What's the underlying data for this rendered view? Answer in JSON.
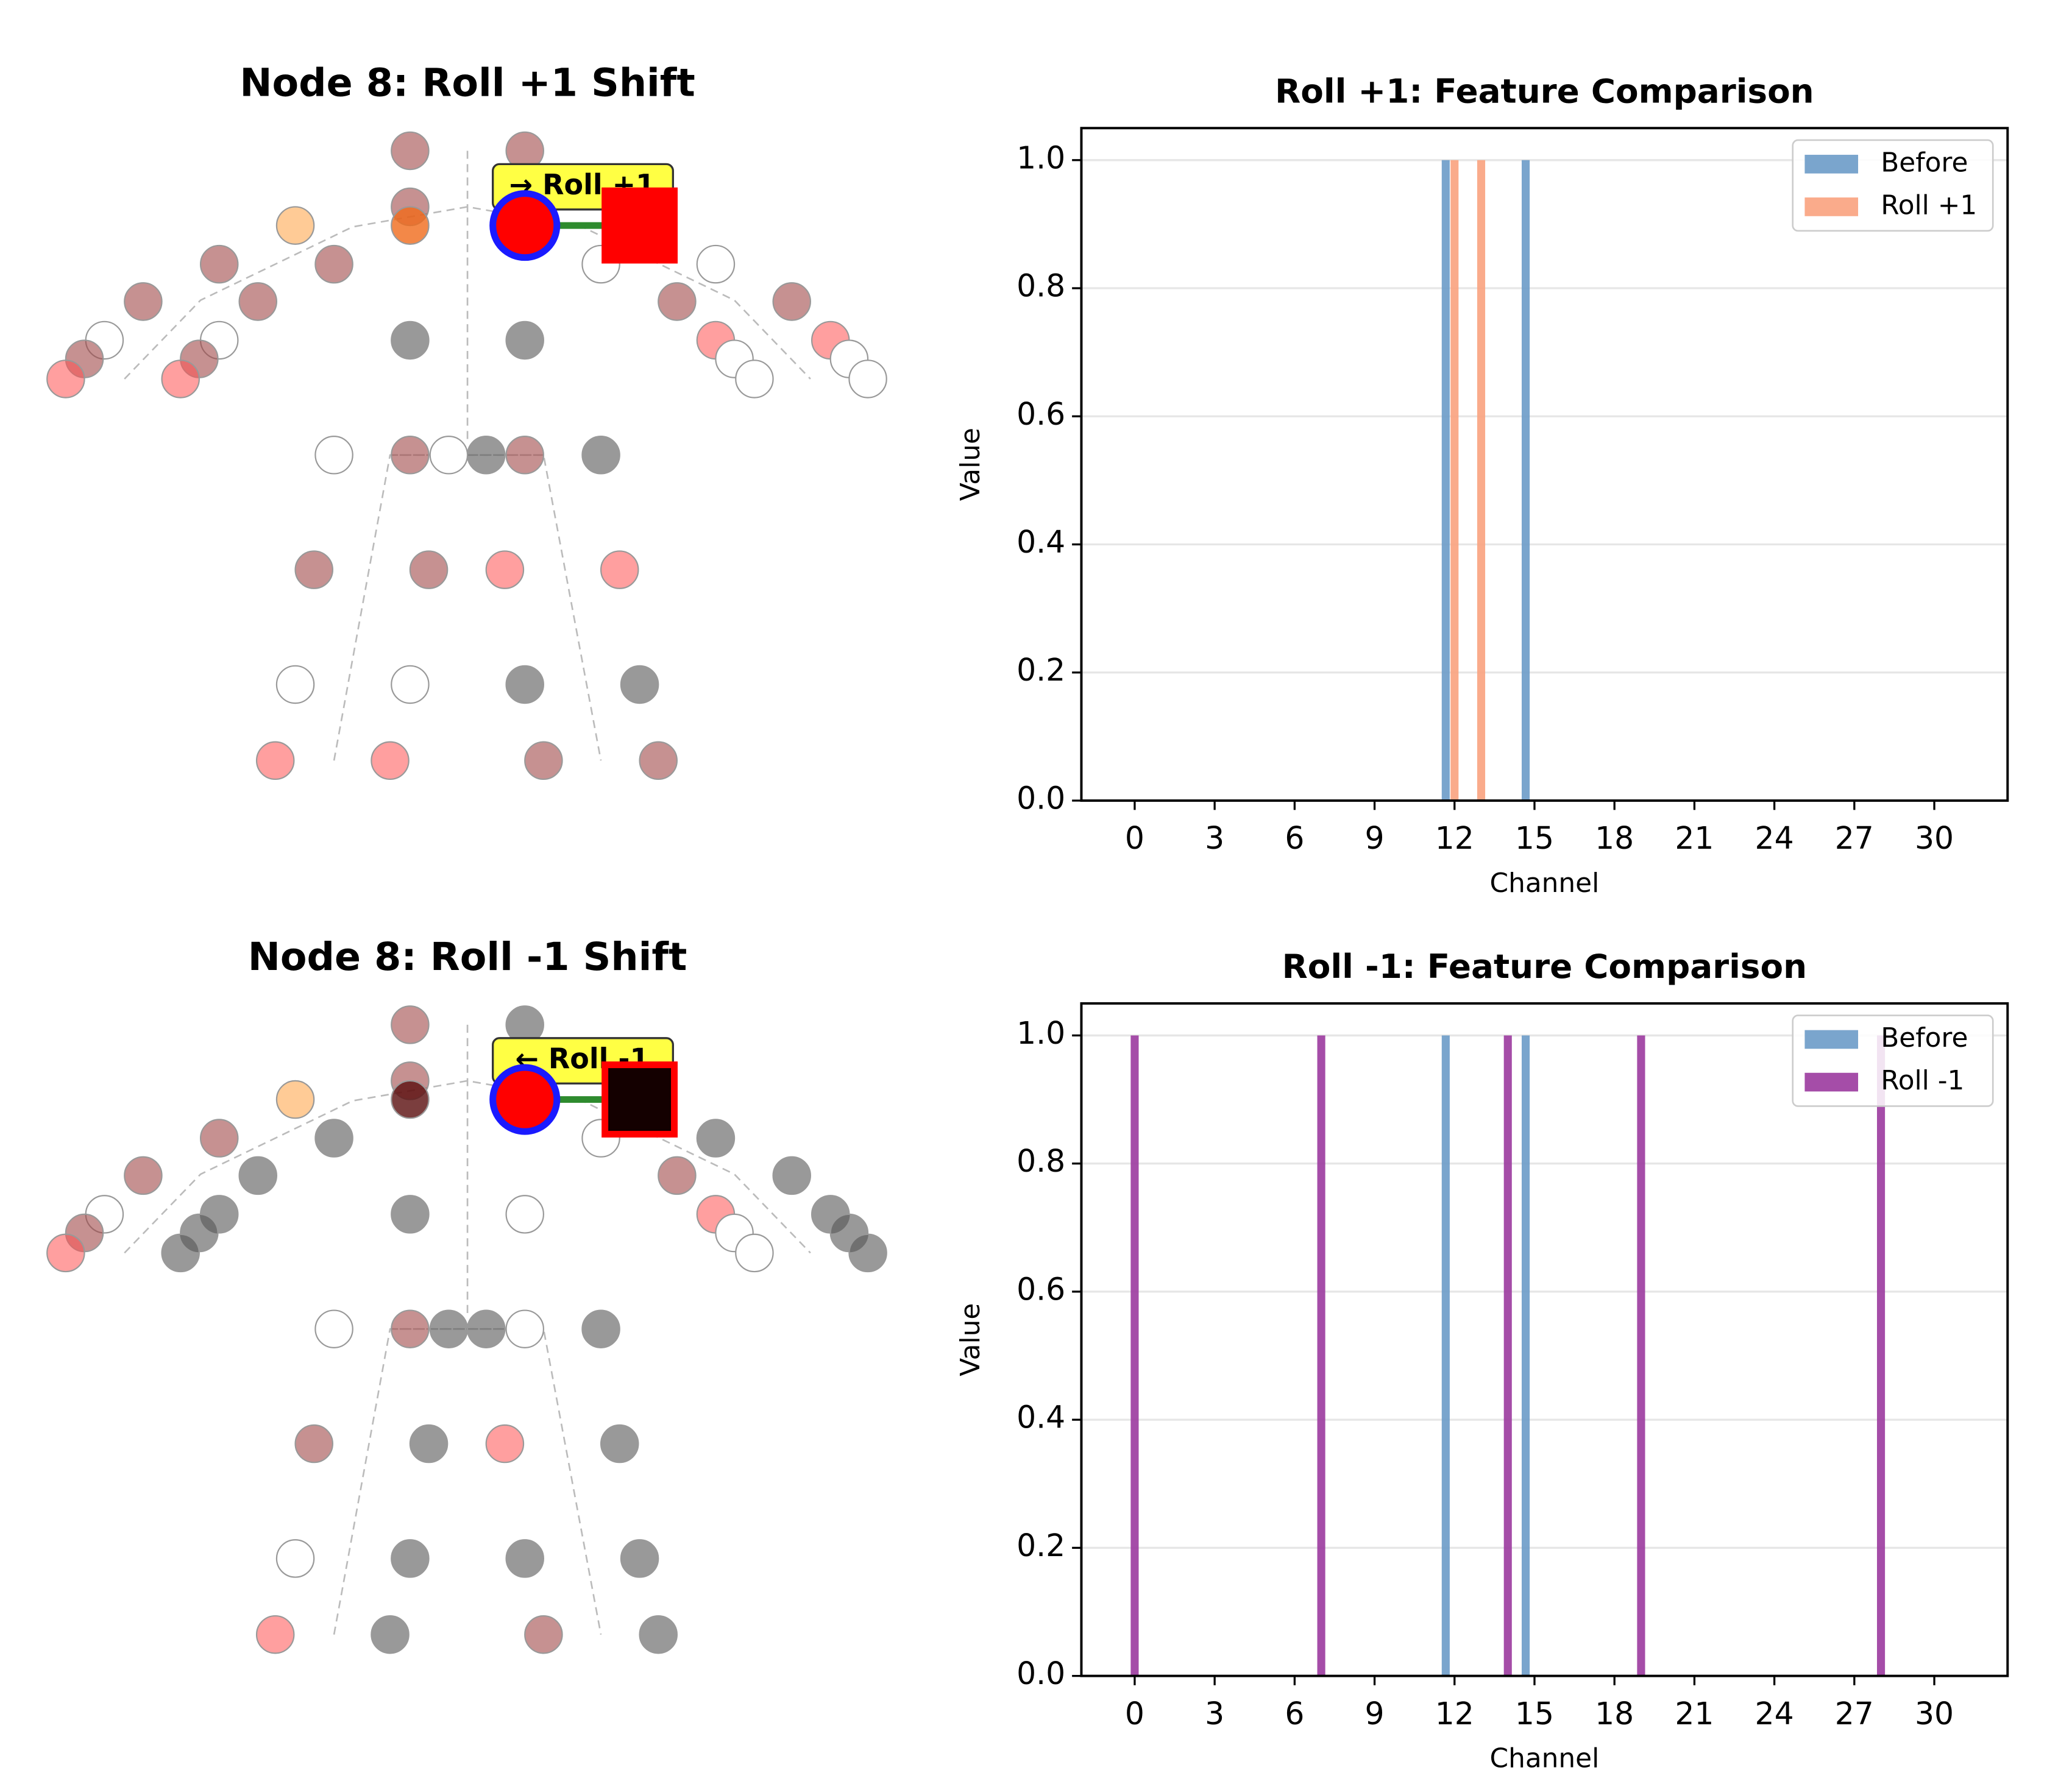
{
  "chart_data": [
    {
      "type": "skeleton",
      "title": "Node 8: Roll +1 Shift",
      "annotation": "→ Roll +1"
    },
    {
      "type": "bar",
      "title": "Roll +1: Feature Comparison",
      "xlabel": "Channel",
      "ylabel": "Value",
      "x": [
        0,
        1,
        2,
        3,
        4,
        5,
        6,
        7,
        8,
        9,
        10,
        11,
        12,
        13,
        14,
        15,
        16,
        17,
        18,
        19,
        20,
        21,
        22,
        23,
        24,
        25,
        26,
        27,
        28,
        29,
        30,
        31
      ],
      "series": [
        {
          "name": "Before",
          "color": "#6b9bc8",
          "values": [
            0,
            0,
            0,
            0,
            0,
            0,
            0,
            0,
            0,
            0,
            0,
            0,
            1,
            0,
            0,
            1,
            0,
            0,
            0,
            0,
            0,
            0,
            0,
            0,
            0,
            0,
            0,
            0,
            0,
            0,
            0,
            0
          ]
        },
        {
          "name": "Roll +1",
          "color": "#f9a27e",
          "values": [
            0,
            0,
            0,
            0,
            0,
            0,
            0,
            0,
            0,
            0,
            0,
            0,
            1,
            1,
            0,
            0,
            0,
            0,
            0,
            0,
            0,
            0,
            0,
            0,
            0,
            0,
            0,
            0,
            0,
            0,
            0,
            0
          ]
        }
      ],
      "xlim": [
        -2,
        32.75
      ],
      "xticks": [
        0,
        3,
        6,
        9,
        12,
        15,
        18,
        21,
        24,
        27,
        30
      ],
      "ylim": [
        0,
        1.05
      ],
      "yticks": [
        {
          "value": 0,
          "label": "0.0"
        },
        0.2,
        0.4,
        0.6,
        0.8,
        {
          "value": 1,
          "label": "1.0"
        }
      ],
      "grid": true,
      "legend": "upper right"
    },
    {
      "type": "skeleton",
      "title": "Node 8: Roll -1 Shift",
      "annotation": "← Roll -1"
    },
    {
      "type": "bar",
      "title": "Roll -1: Feature Comparison",
      "xlabel": "Channel",
      "ylabel": "Value",
      "x": [
        0,
        1,
        2,
        3,
        4,
        5,
        6,
        7,
        8,
        9,
        10,
        11,
        12,
        13,
        14,
        15,
        16,
        17,
        18,
        19,
        20,
        21,
        22,
        23,
        24,
        25,
        26,
        27,
        28,
        29,
        30,
        31
      ],
      "series": [
        {
          "name": "Before",
          "color": "#6b9bc8",
          "values": [
            0,
            0,
            0,
            0,
            0,
            0,
            0,
            0,
            0,
            0,
            0,
            0,
            1,
            0,
            0,
            1,
            0,
            0,
            0,
            0,
            0,
            0,
            0,
            0,
            0,
            0,
            0,
            0,
            0,
            0,
            0,
            0
          ]
        },
        {
          "name": "Roll -1",
          "color": "#9b3a9e",
          "values": [
            1,
            0,
            0,
            0,
            0,
            0,
            0,
            1,
            0,
            0,
            0,
            0,
            0,
            0,
            1,
            0,
            0,
            0,
            0,
            1,
            0,
            0,
            0,
            0,
            0,
            0,
            0,
            0,
            1,
            0,
            0,
            0
          ]
        }
      ],
      "xlim": [
        -2,
        32.75
      ],
      "xticks": [
        0,
        3,
        6,
        9,
        12,
        15,
        18,
        21,
        24,
        27,
        30
      ],
      "ylim": [
        0,
        1.05
      ],
      "yticks": [
        {
          "value": 0,
          "label": "0.0"
        },
        0.2,
        0.4,
        0.6,
        0.8,
        {
          "value": 1,
          "label": "1.0"
        }
      ],
      "grid": true,
      "legend": "upper right"
    }
  ]
}
